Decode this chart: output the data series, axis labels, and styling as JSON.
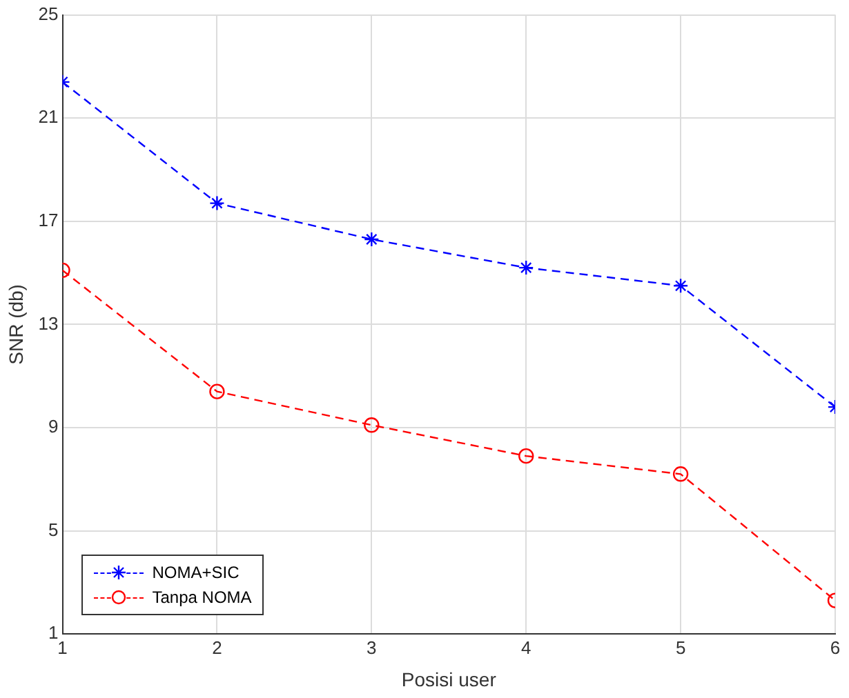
{
  "chart_data": {
    "type": "line",
    "xlabel": "Posisi user",
    "ylabel": "SNR (db)",
    "x": [
      1,
      2,
      3,
      4,
      5,
      6
    ],
    "xlim": [
      1,
      6
    ],
    "xticks": [
      1,
      2,
      3,
      4,
      5,
      6
    ],
    "ylim": [
      1,
      25
    ],
    "yticks": [
      1,
      5,
      9,
      13,
      17,
      21,
      25
    ],
    "grid": true,
    "legend": "bottom left",
    "line_style": "dashed",
    "series": [
      {
        "name": "NOMA+SIC",
        "color": "#0000ff",
        "marker": "cross",
        "values": [
          22.4,
          17.7,
          16.3,
          15.2,
          14.5,
          9.8
        ]
      },
      {
        "name": "Tanpa NOMA",
        "color": "#ff0000",
        "marker": "circle",
        "values": [
          15.1,
          10.4,
          9.1,
          7.9,
          7.2,
          2.3
        ]
      }
    ]
  }
}
